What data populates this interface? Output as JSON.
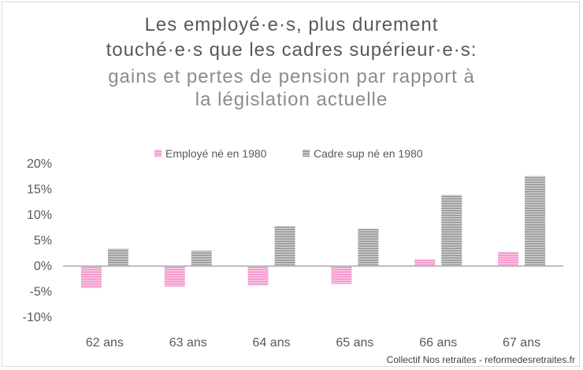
{
  "chart_data": {
    "type": "bar",
    "title_lines": [
      "Les employé·e·s, plus durement",
      "touché·e·s que les cadres supérieur·e·s:"
    ],
    "subtitle_lines": [
      "gains et pertes de pension par rapport à",
      "la législation actuelle"
    ],
    "categories": [
      "62 ans",
      "63 ans",
      "64 ans",
      "65 ans",
      "66 ans",
      "67 ans"
    ],
    "series": [
      {
        "name": "Employé né en 1980",
        "color": "#f7a3d4",
        "values": [
          -4.3,
          -4.0,
          -3.8,
          -3.5,
          1.3,
          2.8
        ]
      },
      {
        "name": "Cadre sup né en 1980",
        "color": "#a6a6a6",
        "values": [
          3.4,
          3.0,
          7.8,
          7.3,
          13.9,
          17.6
        ]
      }
    ],
    "ylim": [
      -10,
      20
    ],
    "yticks": [
      "20%",
      "15%",
      "10%",
      "5%",
      "0%",
      "-5%",
      "-10%"
    ],
    "ytick_values": [
      20,
      15,
      10,
      5,
      0,
      -5,
      -10
    ],
    "legend_position": "top-center",
    "grid": false
  },
  "credit": "Collectif Nos retraites - reformedesretraites.fr"
}
